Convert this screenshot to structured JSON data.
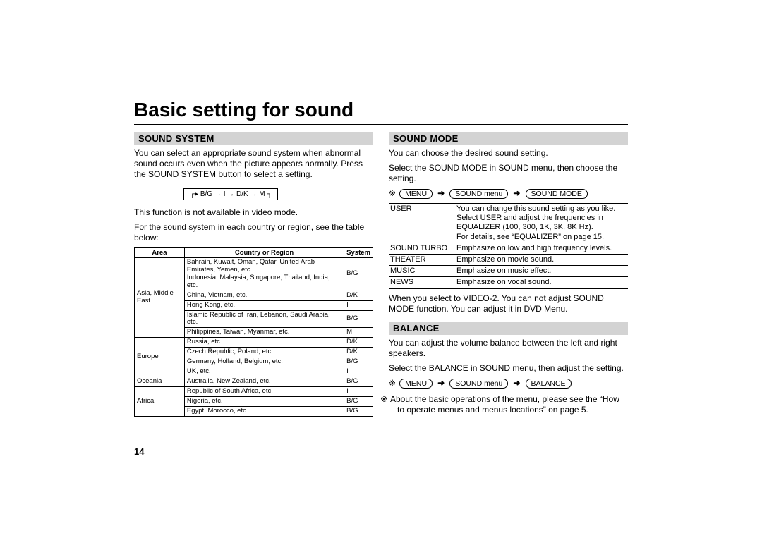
{
  "title": "Basic setting for sound",
  "pageNumber": "14",
  "left": {
    "header": "SOUND SYSTEM",
    "para1": "You can select an appropriate sound system when abnormal sound occurs even when the picture appears normally. Press the SOUND SYSTEM button to select a setting.",
    "cycleItems": [
      "B/G",
      "I",
      "D/K",
      "M"
    ],
    "para2a": "This function is not available in video mode.",
    "para2b": "For the sound system in each country or region, see the table below:",
    "table": {
      "headers": [
        "Area",
        "Country or Region",
        "System"
      ],
      "groups": [
        {
          "area": "Asia, Middle East",
          "rows": [
            [
              "Bahrain, Kuwait, Oman, Qatar, United Arab Emirates, Yemen, etc.\nIndonesia, Malaysia, Singapore, Thailand, India, etc.",
              "B/G"
            ],
            [
              "China, Vietnam, etc.",
              "D/K"
            ],
            [
              "Hong Kong, etc.",
              "I"
            ],
            [
              "Islamic Republic of Iran, Lebanon, Saudi Arabia, etc.",
              "B/G"
            ],
            [
              "Philippines, Taiwan, Myanmar, etc.",
              "M"
            ]
          ]
        },
        {
          "area": "Europe",
          "rows": [
            [
              "Russia, etc.",
              "D/K"
            ],
            [
              "Czech Republic, Poland, etc.",
              "D/K"
            ],
            [
              "Germany, Holland, Belgium, etc.",
              "B/G"
            ],
            [
              "UK, etc.",
              "I"
            ]
          ]
        },
        {
          "area": "Oceania",
          "rows": [
            [
              "Australia, New Zealand, etc.",
              "B/G"
            ]
          ]
        },
        {
          "area": "Africa",
          "rows": [
            [
              "Republic of South Africa, etc.",
              "I"
            ],
            [
              "Nigeria, etc.",
              "B/G"
            ],
            [
              "Egypt, Morocco, etc.",
              "B/G"
            ]
          ]
        }
      ]
    }
  },
  "right": {
    "soundMode": {
      "header": "SOUND MODE",
      "para1": "You can choose the desired sound setting.",
      "para2": "Select the SOUND MODE in SOUND menu, then choose the setting.",
      "nav": [
        "MENU",
        "SOUND menu",
        "SOUND MODE"
      ],
      "modes": [
        [
          "USER",
          "You can change this sound setting as you like.\nSelect USER and adjust the frequencies in EQUALIZER (100, 300, 1K, 3K, 8K Hz).\nFor details, see “EQUALIZER” on page 15."
        ],
        [
          "SOUND TURBO",
          "Emphasize on low and high frequency levels."
        ],
        [
          "THEATER",
          "Emphasize on movie sound."
        ],
        [
          "MUSIC",
          "Emphasize on music effect."
        ],
        [
          "NEWS",
          "Emphasize on vocal sound."
        ]
      ],
      "para3": "When you select to VIDEO-2. You can not adjust SOUND MODE function. You can adjust it in DVD Menu."
    },
    "balance": {
      "header": "BALANCE",
      "para1": "You can adjust the volume balance between the left and right speakers.",
      "para2": "Select the BALANCE in SOUND menu, then adjust the setting.",
      "nav": [
        "MENU",
        "SOUND menu",
        "BALANCE"
      ]
    },
    "footnote": "About the basic operations of the menu, please see the “How to operate menus and menus locations” on page 5."
  }
}
